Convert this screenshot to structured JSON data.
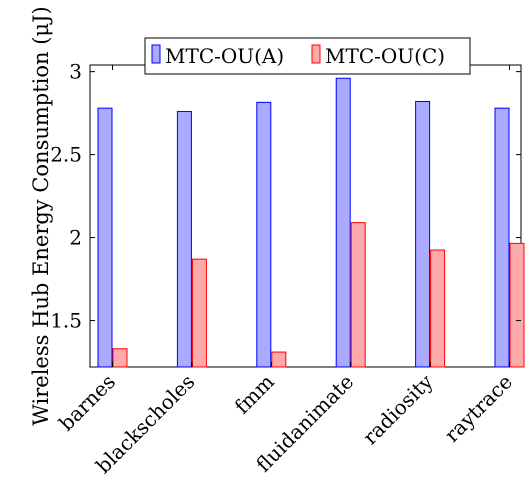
{
  "chart_data": {
    "type": "bar",
    "title": "",
    "xlabel": "",
    "ylabel": "Wireless Hub Energy Consumption (μJ)",
    "categories": [
      "barnes",
      "blackscholes",
      "fmm",
      "fluidanimate",
      "radiosity",
      "raytrace"
    ],
    "series": [
      {
        "name": "MTC-OU(A)",
        "values": [
          2.78,
          2.76,
          2.815,
          2.96,
          2.82,
          2.78
        ],
        "fill": "#aaaaff",
        "stroke": "#0000ff"
      },
      {
        "name": "MTC-OU(C)",
        "values": [
          1.33,
          1.87,
          1.31,
          2.09,
          1.925,
          1.965
        ],
        "fill": "#ffaaaa",
        "stroke": "#ff0000"
      }
    ],
    "ylim": [
      1.22,
      3.04
    ],
    "yticks": [
      1.5,
      2,
      2.5,
      3
    ],
    "ytick_labels": [
      "1.5",
      "2",
      "2.5",
      "3"
    ],
    "grid": false,
    "legend_position": "top-center"
  }
}
